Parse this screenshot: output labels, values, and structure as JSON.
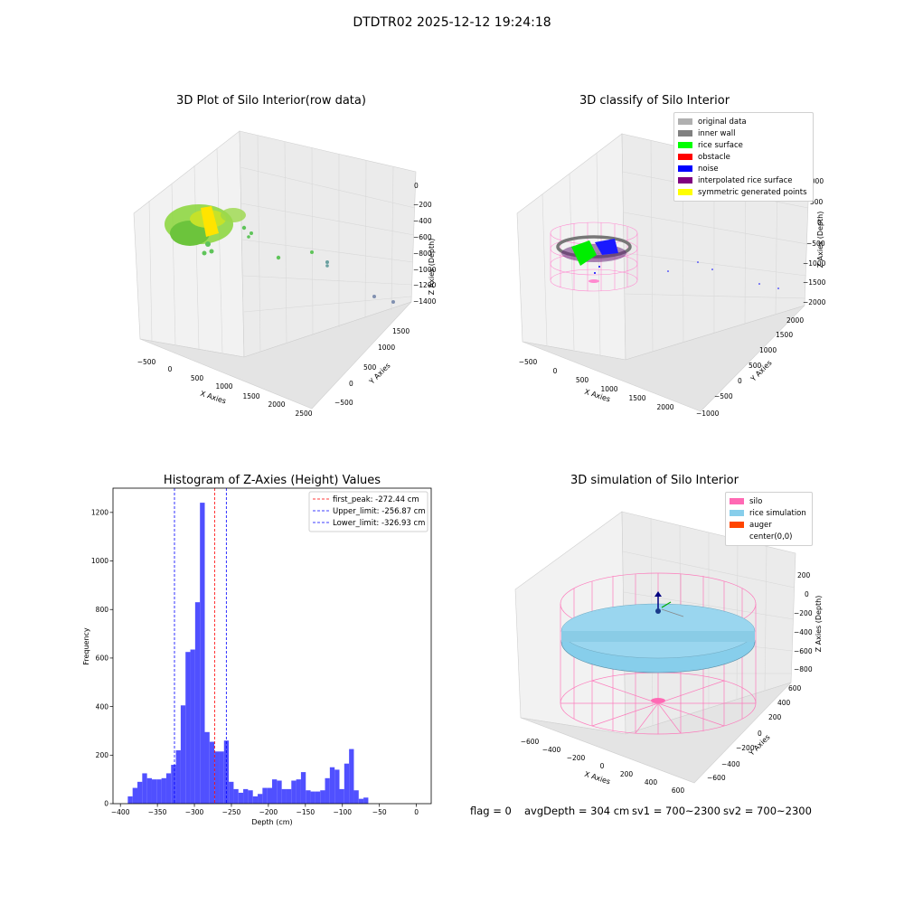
{
  "title": "DTDTR02 2025-12-12 19:24:18",
  "panels": {
    "raw": {
      "title": "3D Plot of Silo Interior(row data)",
      "xlabel": "X Axies",
      "ylabel": "Y Axies",
      "zlabel": "Z Axies (Depth)",
      "xticks": [
        "−500",
        "0",
        "500",
        "1000",
        "1500",
        "2000",
        "2500"
      ],
      "yticks": [
        "−500",
        "0",
        "500",
        "1000",
        "1500"
      ],
      "zticks": [
        "0",
        "−200",
        "−400",
        "−600",
        "−800",
        "−1000",
        "−1200",
        "−1400"
      ]
    },
    "classify": {
      "title": "3D classify of Silo Interior",
      "xlabel": "X Axies",
      "ylabel": "Y Axies",
      "zlabel": "Z Axies (Depth)",
      "xticks": [
        "−500",
        "0",
        "500",
        "1000",
        "1500",
        "2000"
      ],
      "yticks": [
        "−1000",
        "−500",
        "0",
        "500",
        "1000",
        "1500",
        "2000"
      ],
      "zticks": [
        "1000",
        "500",
        "0",
        "−500",
        "−1000",
        "−1500",
        "−2000"
      ],
      "legend": [
        {
          "label": "original data",
          "color": "#b0b0b0"
        },
        {
          "label": "inner wall",
          "color": "#808080"
        },
        {
          "label": "rice surface",
          "color": "#00ff00"
        },
        {
          "label": "obstacle",
          "color": "#ff0000"
        },
        {
          "label": "noise",
          "color": "#0000ff"
        },
        {
          "label": "interpolated rice surface",
          "color": "#800080"
        },
        {
          "label": "symmetric generated points",
          "color": "#ffff00"
        }
      ]
    },
    "simulation": {
      "title": "3D simulation of Silo Interior",
      "xlabel": "X Axies",
      "ylabel": "Y Axies",
      "zlabel": "Z Axies (Depth)",
      "xticks": [
        "−600",
        "−400",
        "−200",
        "0",
        "200",
        "400",
        "600"
      ],
      "yticks": [
        "−600",
        "−400",
        "−200",
        "0",
        "200",
        "400",
        "600"
      ],
      "zticks": [
        "200",
        "0",
        "−200",
        "−400",
        "−600",
        "−800"
      ],
      "legend": [
        {
          "label": "silo",
          "color": "#ff69b4"
        },
        {
          "label": "rice simulation",
          "color": "#87ceeb"
        },
        {
          "label": "auger",
          "color": "#ff4500"
        },
        {
          "label": "center(0,0)",
          "color": "#ffffff"
        }
      ]
    }
  },
  "chart_data": {
    "type": "bar",
    "title": "Histogram of Z-Axies (Height) Values",
    "xlabel": "Depth (cm)",
    "ylabel": "Frequency",
    "xlim": [
      -410,
      20
    ],
    "ylim": [
      0,
      1300
    ],
    "xticks": [
      -400,
      -350,
      -300,
      -250,
      -200,
      -150,
      -100,
      -50,
      0
    ],
    "yticks": [
      0,
      200,
      400,
      600,
      800,
      1000,
      1200
    ],
    "bar_color": "#5050ff",
    "bin_start": -390,
    "bin_width": 6.5,
    "values": [
      30,
      65,
      90,
      125,
      105,
      100,
      100,
      105,
      125,
      160,
      220,
      405,
      625,
      635,
      830,
      1240,
      295,
      255,
      215,
      215,
      260,
      90,
      60,
      45,
      60,
      55,
      30,
      40,
      65,
      65,
      100,
      95,
      60,
      60,
      95,
      100,
      130,
      55,
      50,
      50,
      55,
      105,
      150,
      140,
      60,
      165,
      225,
      55,
      20,
      25
    ],
    "vlines": [
      {
        "x": -272.44,
        "color": "#ff0000",
        "label": "first_peak: -272.44 cm"
      },
      {
        "x": -256.87,
        "color": "#0000ff",
        "label": "Upper_limit: -256.87 cm"
      },
      {
        "x": -326.93,
        "color": "#0000ff",
        "label": "Lower_limit: -326.93 cm"
      }
    ],
    "legend_position": "upper right"
  },
  "footer": {
    "flag": "flag = 0",
    "avg": "avgDepth = 304 cm",
    "sv1": "sv1 = 700~2300",
    "sv2": "sv2 = 700~2300"
  }
}
